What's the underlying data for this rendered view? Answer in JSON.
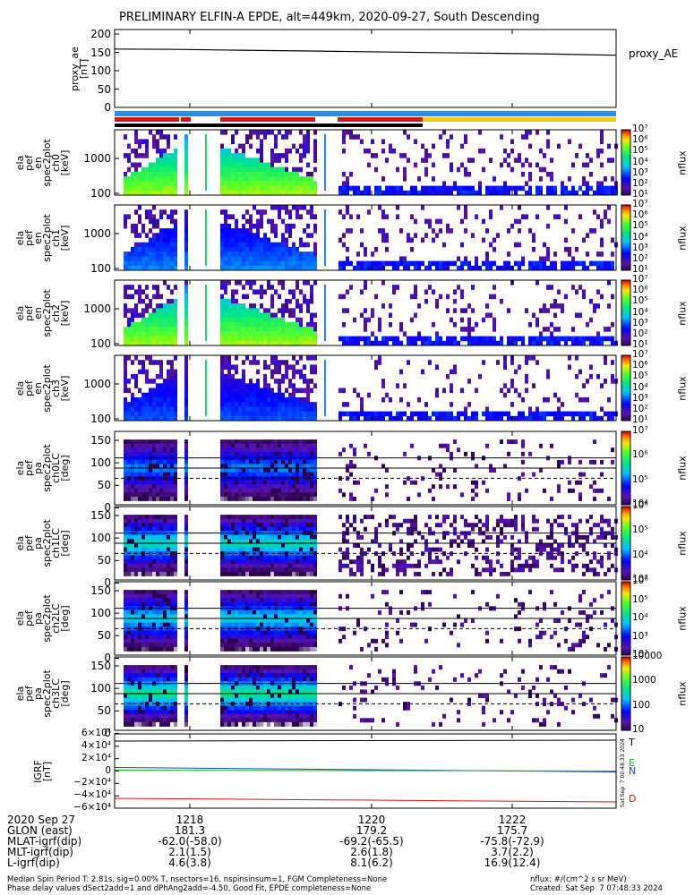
{
  "chart_data": {
    "type": "heatmap",
    "title": "PRELIMINARY ELFIN-A EPDE, alt=449km, 2020-09-27, South Descending",
    "time_ticks": [
      "1218",
      "1220",
      "1222"
    ],
    "panels": [
      {
        "kind": "line",
        "ylabel": [
          "proxy_ae",
          "[nT]"
        ],
        "yticks": [
          "200",
          "150",
          "100",
          "50",
          "0"
        ],
        "legend": "proxy_AE",
        "ylim": [
          0,
          200
        ],
        "series": [
          {
            "values": [
              150,
              149,
              147,
              145,
              143,
              141,
              139,
              137,
              134
            ]
          }
        ]
      },
      {
        "kind": "spec",
        "ylabel": [
          "ela",
          "pef",
          "en",
          "spec2plot",
          "ch0",
          "[keV]"
        ],
        "yticks": [
          "1000",
          "100"
        ],
        "ctype": "log",
        "cticks": [
          "10⁷",
          "10⁶",
          "10⁵",
          "10⁴",
          "10³",
          "10²",
          "10¹"
        ],
        "cunit": "nflux"
      },
      {
        "kind": "spec",
        "ylabel": [
          "ela",
          "pef",
          "en",
          "spec2plot",
          "ch1",
          "[keV]"
        ],
        "yticks": [
          "1000",
          "100"
        ],
        "ctype": "log",
        "cticks": [
          "10⁷",
          "10⁶",
          "10⁵",
          "10⁴",
          "10³",
          "10²",
          "10¹"
        ],
        "cunit": "nflux"
      },
      {
        "kind": "spec",
        "ylabel": [
          "ela",
          "pef",
          "en",
          "spec2plot",
          "ch2",
          "[keV]"
        ],
        "yticks": [
          "1000",
          "100"
        ],
        "ctype": "log",
        "cticks": [
          "10⁷",
          "10⁶",
          "10⁵",
          "10⁴",
          "10³",
          "10²",
          "10¹"
        ],
        "cunit": "nflux"
      },
      {
        "kind": "spec",
        "ylabel": [
          "ela",
          "pef",
          "en",
          "spec2plot",
          "ch3",
          "[keV]"
        ],
        "yticks": [
          "1000",
          "100"
        ],
        "ctype": "log",
        "cticks": [
          "10⁷",
          "10⁶",
          "10⁵",
          "10⁴",
          "10³",
          "10²",
          "10¹"
        ],
        "cunit": "nflux"
      },
      {
        "kind": "pa",
        "ylabel": [
          "ela",
          "pef",
          "pa",
          "spec2plot",
          "ch0LC",
          "[deg]"
        ],
        "yticks": [
          "150",
          "100",
          "50",
          "0"
        ],
        "ctype": "log",
        "cticks": [
          "10⁷",
          "10⁶",
          "10⁵",
          "10⁴"
        ],
        "cunit": "nflux"
      },
      {
        "kind": "pa",
        "ylabel": [
          "ela",
          "pef",
          "pa",
          "spec2plot",
          "ch1LC",
          "[deg]"
        ],
        "yticks": [
          "150",
          "100",
          "50",
          "0"
        ],
        "ctype": "log",
        "cticks": [
          "10⁶",
          "10⁵",
          "10⁴",
          "10³"
        ],
        "cunit": "nflux"
      },
      {
        "kind": "pa",
        "ylabel": [
          "ela",
          "pef",
          "pa",
          "spec2plot",
          "ch2LC",
          "[deg]"
        ],
        "yticks": [
          "150",
          "100",
          "50",
          "0"
        ],
        "ctype": "log",
        "cticks": [
          "10⁶",
          "10⁵",
          "10⁴",
          "10³",
          "10²"
        ],
        "cunit": "nflux"
      },
      {
        "kind": "pa",
        "ylabel": [
          "ela",
          "pef",
          "pa",
          "spec2plot",
          "ch3LC",
          "[deg]"
        ],
        "yticks": [
          "150",
          "100",
          "50",
          "0"
        ],
        "ctype": "lin",
        "cticks": [
          "10000",
          "1000",
          "100",
          "10"
        ],
        "cunit": "nflux"
      },
      {
        "kind": "igrf",
        "ylabel": [
          "IGRF",
          "[nT]"
        ],
        "yticks": [
          "6×10⁴",
          "4×10⁴",
          "2×10⁴",
          "0",
          "−2×10⁴",
          "−4×10⁴",
          "−6×10⁴"
        ],
        "series_labels": [
          "T",
          "E",
          "N",
          "D"
        ],
        "stamp": "Sat Sep  7 00:48:33 2024"
      }
    ],
    "bars_note": "orbit/science-zone indicator bars",
    "footer_table": {
      "rows": [
        {
          "label": "2020 Sep 27",
          "values": [
            "1218",
            "1220",
            "1222"
          ]
        },
        {
          "label": "GLON (east)",
          "values": [
            "181.3",
            "179.2",
            "175.7"
          ]
        },
        {
          "label": "MLAT-igrf(dip)",
          "values": [
            "-62.0(-58.0)",
            "-69.2(-65.5)",
            "-75.8(-72.9)"
          ]
        },
        {
          "label": "MLT-igrf(dip)",
          "values": [
            "2.1(1.5)",
            "2.6(1.8)",
            "3.7(2.2)"
          ]
        },
        {
          "label": "L-igrf(dip)",
          "values": [
            "4.6(3.8)",
            "8.1(6.2)",
            "16.9(12.4)"
          ]
        }
      ]
    },
    "footnote_left": [
      "Median Spin Period T: 2.81s, sig=0.00% T, nsectors=16, nspinsinsum=1, FGM Completeness=None",
      "Phase delay values dSect2add=1 and dPhAng2add=-4.50, Good Fit, EPDE completeness=None"
    ],
    "footnote_right": [
      "nflux: #/(cm^2 s sr MeV)",
      "Created: Sat Sep  7 07:48:33 2024"
    ]
  }
}
